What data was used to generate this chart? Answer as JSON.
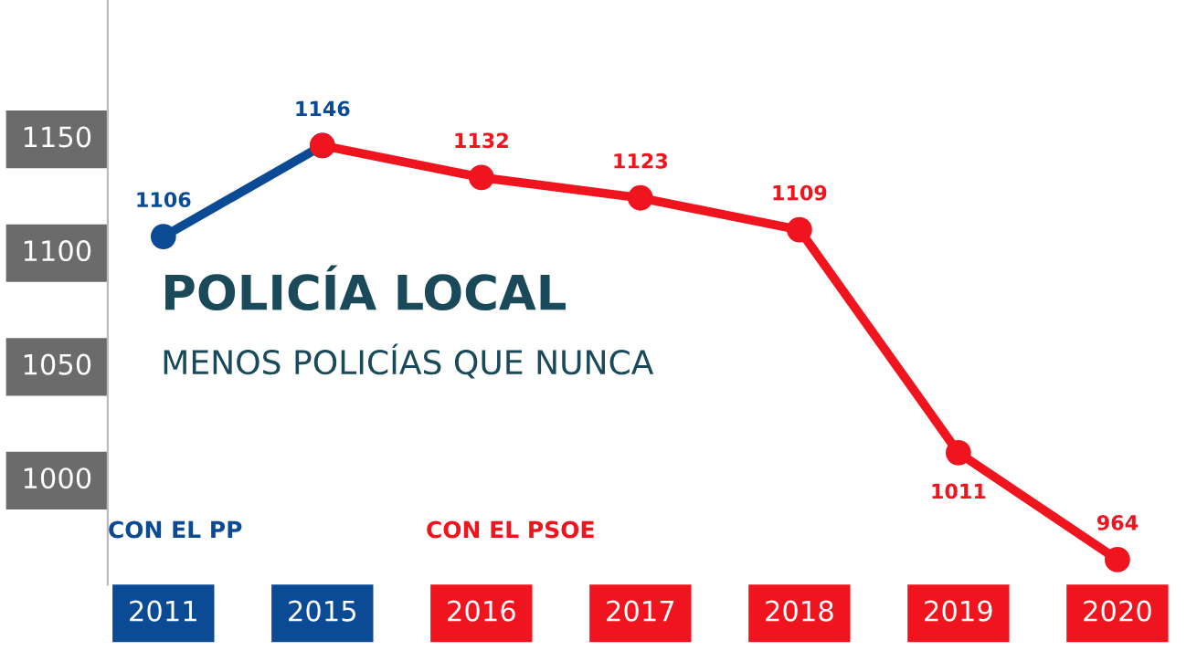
{
  "chart_data": {
    "type": "line",
    "title": "POLICÍA LOCAL",
    "subtitle": "MENOS POLICÍAS QUE NUNCA",
    "categories": [
      "2011",
      "2015",
      "2016",
      "2017",
      "2018",
      "2019",
      "2020"
    ],
    "series": [
      {
        "color": "#0b4a94",
        "values": [
          1106,
          1146,
          null,
          null,
          null,
          null,
          null
        ],
        "value_labels": [
          "1106",
          "1146",
          null,
          null,
          null,
          null,
          null
        ]
      },
      {
        "color": "#f0141e",
        "values": [
          null,
          1146,
          1132,
          1123,
          1109,
          1011,
          964
        ],
        "value_labels": [
          null,
          null,
          "1132",
          "1123",
          "1109",
          "1011",
          "964"
        ]
      }
    ],
    "ylim": [
      953,
      1210
    ],
    "yticks": [
      1000,
      1050,
      1100,
      1150
    ],
    "grid": false,
    "marker": "circle",
    "line_style": "solid",
    "annotations": [
      "CON EL PP",
      "CON EL PSOE"
    ]
  }
}
